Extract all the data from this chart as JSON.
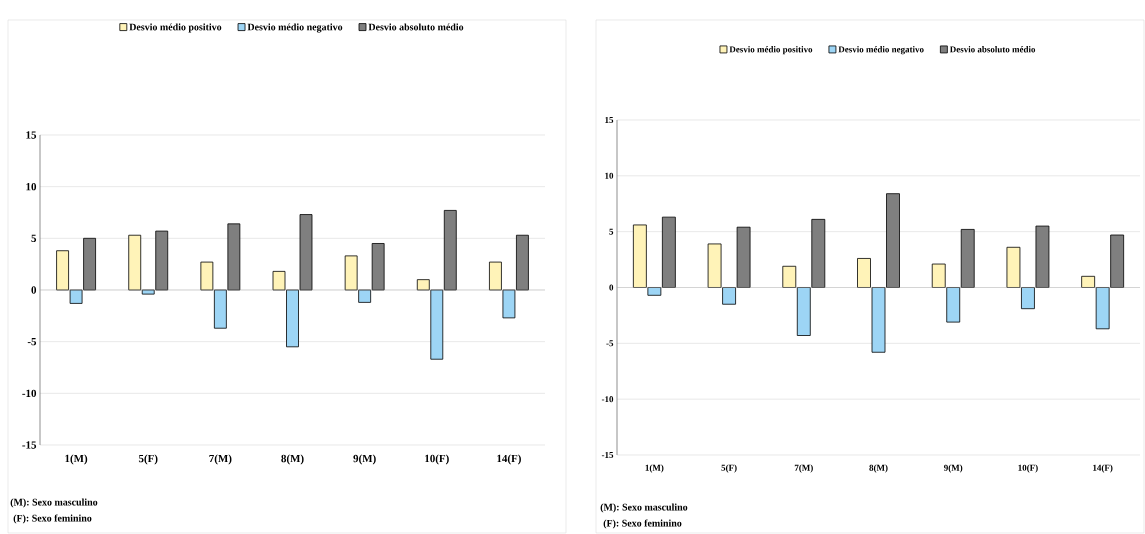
{
  "chart_data": [
    {
      "type": "bar",
      "categories": [
        "1(M)",
        "5(F)",
        "7(M)",
        "8(M)",
        "9(M)",
        "10(F)",
        "14(F)"
      ],
      "series": [
        {
          "name": "Desvio médio positivo",
          "color": "#fff3b8",
          "values": [
            3.8,
            5.3,
            2.7,
            1.8,
            3.3,
            1.0,
            2.7
          ]
        },
        {
          "name": "Desvio médio negativo",
          "color": "#9dd5f5",
          "values": [
            -1.3,
            -0.4,
            -3.7,
            -5.5,
            -1.2,
            -6.7,
            -2.7
          ]
        },
        {
          "name": "Desvio absoluto médio",
          "color": "#7f7f7f",
          "values": [
            5.0,
            5.7,
            6.4,
            7.3,
            4.5,
            7.7,
            5.3
          ]
        }
      ],
      "ylim": [
        -15,
        15
      ],
      "yticks": [
        -15,
        -10,
        -5,
        0,
        5,
        10,
        15
      ],
      "grid": "y",
      "legend": "top",
      "annotations": [
        "(M): Sexo masculino",
        "(F): Sexo feminino"
      ]
    },
    {
      "type": "bar",
      "categories": [
        "1(M)",
        "5(F)",
        "7(M)",
        "8(M)",
        "9(M)",
        "10(F)",
        "14(F)"
      ],
      "series": [
        {
          "name": "Desvio médio positivo",
          "color": "#fff3b8",
          "values": [
            5.6,
            3.9,
            1.9,
            2.6,
            2.1,
            3.6,
            1.0
          ]
        },
        {
          "name": "Desvio médio negativo",
          "color": "#9dd5f5",
          "values": [
            -0.7,
            -1.5,
            -4.3,
            -5.8,
            -3.1,
            -1.9,
            -3.7
          ]
        },
        {
          "name": "Desvio absoluto médio",
          "color": "#7f7f7f",
          "values": [
            6.3,
            5.4,
            6.1,
            8.4,
            5.2,
            5.5,
            4.7
          ]
        }
      ],
      "ylim": [
        -15,
        15
      ],
      "yticks": [
        -15,
        -10,
        -5,
        0,
        5,
        10,
        15
      ],
      "grid": "y",
      "legend": "top",
      "annotations": [
        "(M): Sexo masculino",
        "(F): Sexo feminino"
      ]
    }
  ]
}
